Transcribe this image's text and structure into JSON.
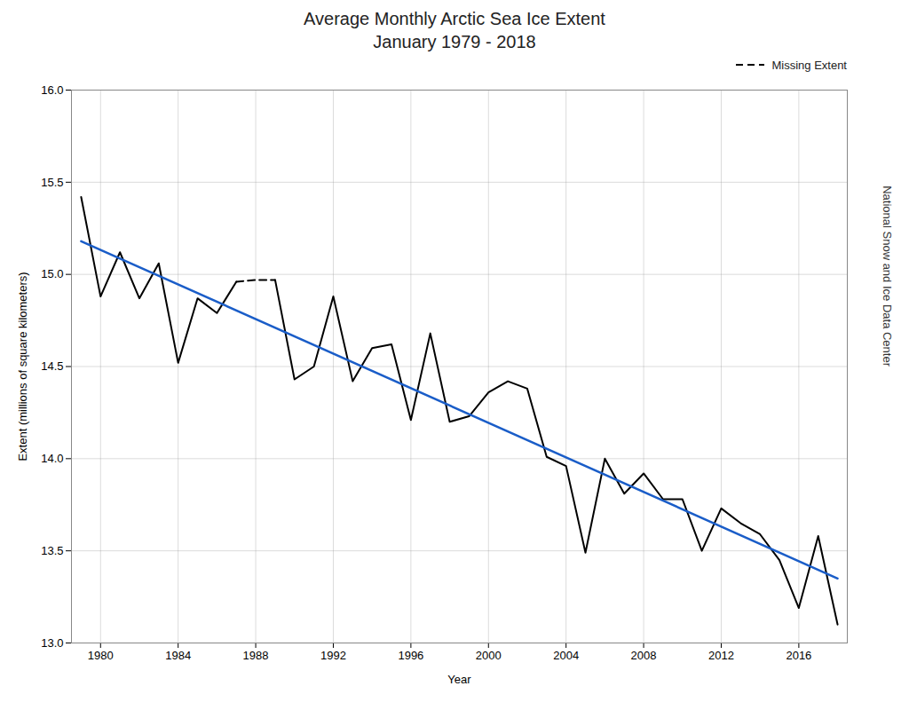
{
  "chart_data": {
    "type": "line",
    "title": "Average Monthly Arctic Sea Ice Extent\nJanuary 1979 - 2018",
    "xlabel": "Year",
    "ylabel": "Extent (millions of square kilometers)",
    "annotations": [
      "National Snow and Ice Data Center"
    ],
    "series": [
      {
        "x": [
          1979,
          1980,
          1981,
          1982,
          1983,
          1984,
          1985,
          1986,
          1987
        ],
        "values": [
          15.42,
          14.88,
          15.12,
          14.87,
          15.06,
          14.52,
          14.87,
          14.79,
          14.96
        ],
        "color": "#000000",
        "line_style": "solid"
      },
      {
        "name": "Missing Extent",
        "x": [
          1987,
          1988,
          1989
        ],
        "values": [
          14.96,
          14.97,
          14.97
        ],
        "color": "#000000",
        "line_style": "dashed"
      },
      {
        "x": [
          1989,
          1990,
          1991,
          1992,
          1993,
          1994,
          1995,
          1996,
          1997,
          1998,
          1999,
          2000,
          2001,
          2002,
          2003,
          2004,
          2005,
          2006,
          2007,
          2008,
          2009,
          2010,
          2011,
          2012,
          2013,
          2014,
          2015,
          2016,
          2017,
          2018
        ],
        "values": [
          14.97,
          14.43,
          14.5,
          14.88,
          14.42,
          14.6,
          14.62,
          14.21,
          14.68,
          14.2,
          14.23,
          14.36,
          14.42,
          14.38,
          14.01,
          13.96,
          13.49,
          14.0,
          13.81,
          13.92,
          13.78,
          13.78,
          13.5,
          13.73,
          13.65,
          13.59,
          13.45,
          13.19,
          13.58,
          13.1
        ],
        "color": "#000000",
        "line_style": "solid"
      },
      {
        "x": [
          1979,
          2018
        ],
        "values": [
          15.18,
          13.35
        ],
        "color": "#1a5dc8",
        "line_style": "solid"
      }
    ],
    "xlim": [
      1978.5,
      2018.5
    ],
    "xticks": [
      1980,
      1984,
      1988,
      1992,
      1996,
      2000,
      2004,
      2008,
      2012,
      2016
    ],
    "ylim": [
      13.0,
      16.0
    ],
    "yticks": [
      {
        "value": 13,
        "label": "13.0"
      },
      13.5,
      {
        "value": 14,
        "label": "14.0"
      },
      14.5,
      {
        "value": 15,
        "label": "15.0"
      },
      15.5,
      {
        "value": 16,
        "label": "16.0"
      }
    ],
    "grid": true,
    "legend": "top-right"
  }
}
